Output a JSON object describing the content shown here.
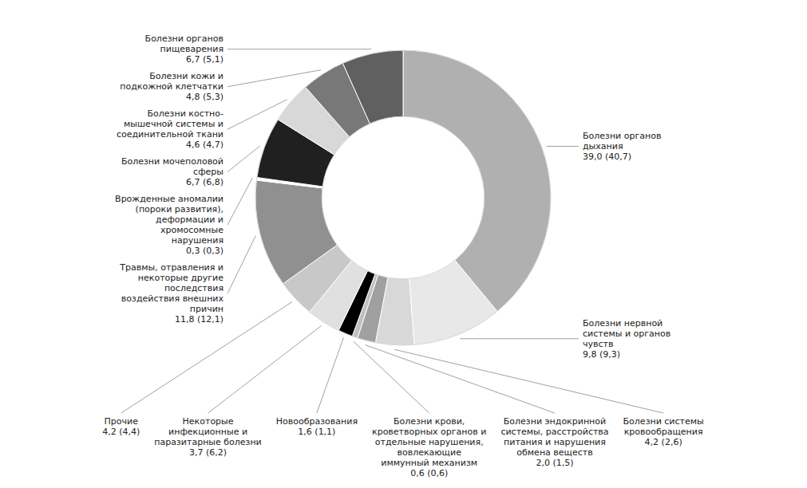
{
  "chart_data": {
    "type": "donut",
    "categories": [
      "Болезни органов\nдыхания\n39,0 (40,7)",
      "Болезни нервной\nсистемы и органов\nчувств\n9,8 (9,3)",
      "Болезни системы\nкровообращения\n4,2 (2,6)",
      "Болезни эндокринной\nсистемы, расстройства\nпитания и нарушения\nобмена веществ\n2,0 (1,5)",
      "Болезни крови,\nкроветворных органов и\nотдельные нарушения,\nвовлекающие\nиммунный механизм\n0,6 (0,6)",
      "Новообразования\n1,6 (1,1)",
      "Некоторые\nинфекционные и\nпаразитарные болезни\n3,7 (6,2)",
      "Прочие\n4,2 (4,4)",
      "Травмы, отравления и\nнекоторые другие\nпоследствия\nвоздействия внешних\nпричин\n11,8 (12,1)",
      "Врожденные аномалии\n(пороки развития),\nдеформации и\nхромосомные\nнарушения\n0,3 (0,3)",
      "Болезни мочеполовой\nсферы\n6,7 (6,8)",
      "Болезни костно-\nмышечной системы и\nсоединительной ткани\n4,6 (4,7)",
      "Болезни кожи и\nподкожной клетчатки\n4,8 (5,3)",
      "Болезни органов\nпищеварения\n6,7 (5,1)"
    ],
    "values": [
      39.0,
      9.8,
      4.2,
      2.0,
      0.6,
      1.6,
      3.7,
      4.2,
      11.8,
      0.3,
      6.7,
      4.6,
      4.8,
      6.7
    ],
    "colors": [
      "#b0b0b0",
      "#e8e8e8",
      "#d8d8d8",
      "#a0a0a0",
      "#c0c0c0",
      "#000000",
      "#e0e0e0",
      "#c8c8c8",
      "#909090",
      "#ffffff",
      "#202020",
      "#d8d8d8",
      "#787878",
      "#606060"
    ]
  }
}
